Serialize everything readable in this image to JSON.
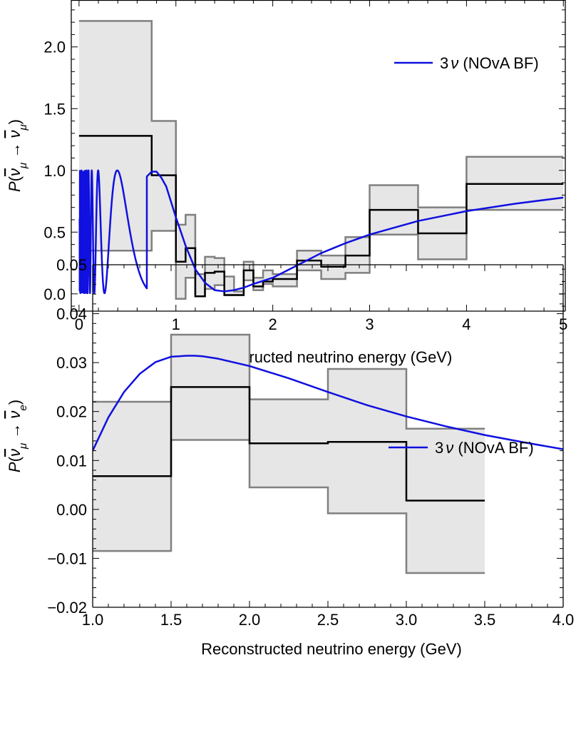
{
  "chart_data": [
    {
      "type": "line",
      "xlabel": "Reconstructed neutrino energy (GeV)",
      "ylabel": "P(ν̄μ → ν̄μ)",
      "ylabel_parts": {
        "prefix": "P",
        "from": "ν",
        "from_sub": "μ",
        "arrow": "→",
        "to": "ν",
        "to_sub": "μ"
      },
      "xlim": [
        -0.08,
        5.02
      ],
      "ylim": [
        -0.14,
        2.38
      ],
      "xticks": [
        0,
        1,
        2,
        3,
        4,
        5
      ],
      "xtick_labels": [
        "0",
        "1",
        "2",
        "3",
        "4",
        "5"
      ],
      "yticks": [
        0.0,
        0.5,
        1.0,
        1.5,
        2.0
      ],
      "ytick_labels": [
        "0.0",
        "0.5",
        "1.0",
        "1.5",
        "2.0"
      ],
      "legend": {
        "position": "top-right",
        "label": "3ν (NOvA BF)",
        "label_parts": {
          "num": "3",
          "nu": "ν",
          "rest": " (NOvA BF)"
        }
      },
      "grid": false,
      "bin_edges": [
        0,
        0.75,
        1.0,
        1.1,
        1.2,
        1.3,
        1.4,
        1.5,
        1.6,
        1.7,
        1.8,
        1.9,
        2.0,
        2.25,
        2.5,
        2.75,
        3.0,
        3.5,
        4.0,
        5.0
      ],
      "series": [
        {
          "role": "histogram-central",
          "color": "#000000",
          "values": [
            1.28,
            0.96,
            0.26,
            0.37,
            -0.02,
            0.17,
            0.18,
            -0.01,
            -0.01,
            0.19,
            0.06,
            0.1,
            0.12,
            0.27,
            0.22,
            0.31,
            0.68,
            0.49,
            0.89
          ]
        },
        {
          "role": "band-upper",
          "color": "#808080",
          "values": [
            2.21,
            1.4,
            0.56,
            0.64,
            0.16,
            0.3,
            0.29,
            0.14,
            0.02,
            0.26,
            0.13,
            0.19,
            0.16,
            0.35,
            0.31,
            0.46,
            0.88,
            0.7,
            1.11
          ]
        },
        {
          "role": "band-lower",
          "color": "#808080",
          "values": [
            0.35,
            0.51,
            -0.04,
            0.13,
            -0.02,
            0.04,
            0.07,
            -0.01,
            -0.01,
            0.11,
            0.03,
            0.08,
            0.06,
            0.19,
            0.12,
            0.17,
            0.48,
            0.28,
            0.68
          ]
        },
        {
          "role": "model-curve",
          "name": "3ν (NOvA BF)",
          "color": "#1010e0",
          "x": [
            0.7,
            0.75,
            0.8,
            0.85,
            0.9,
            1.0,
            1.1,
            1.2,
            1.3,
            1.4,
            1.5,
            1.6,
            1.7,
            1.8,
            2.0,
            2.25,
            2.5,
            2.75,
            3.0,
            3.5,
            4.0,
            4.5,
            5.0
          ],
          "y": [
            0.95,
            0.99,
            0.99,
            0.94,
            0.87,
            0.62,
            0.39,
            0.2,
            0.09,
            0.03,
            0.02,
            0.03,
            0.05,
            0.08,
            0.13,
            0.23,
            0.33,
            0.41,
            0.48,
            0.59,
            0.67,
            0.73,
            0.78
          ],
          "fast_oscillation_region": [
            0.0,
            0.6
          ]
        }
      ]
    },
    {
      "type": "line",
      "xlabel": "Reconstructed neutrino energy (GeV)",
      "ylabel": "P(ν̄μ → ν̄e)",
      "ylabel_parts": {
        "prefix": "P",
        "from": "ν",
        "from_sub": "μ",
        "arrow": "→",
        "to": "ν",
        "to_sub": "e"
      },
      "xlim": [
        1.0,
        4.0
      ],
      "ylim": [
        -0.02,
        0.05
      ],
      "xticks": [
        1.0,
        1.5,
        2.0,
        2.5,
        3.0,
        3.5,
        4.0
      ],
      "xtick_labels": [
        "1.0",
        "1.5",
        "2.0",
        "2.5",
        "3.0",
        "3.5",
        "4.0"
      ],
      "yticks": [
        -0.02,
        -0.01,
        0.0,
        0.01,
        0.02,
        0.03,
        0.04,
        0.05
      ],
      "ytick_labels": [
        "−0.02",
        "−0.01",
        "0.00",
        "0.01",
        "0.02",
        "0.03",
        "0.04",
        "0.05"
      ],
      "legend": {
        "position": "top-right",
        "label": "3ν (NOvA BF)",
        "label_parts": {
          "num": "3",
          "nu": "ν",
          "rest": " (NOvA BF)"
        }
      },
      "grid": false,
      "bin_edges": [
        1.0,
        1.5,
        2.0,
        2.5,
        3.0,
        3.5
      ],
      "series": [
        {
          "role": "histogram-central",
          "color": "#000000",
          "values": [
            0.0068,
            0.025,
            0.0135,
            0.0138,
            0.0018
          ]
        },
        {
          "role": "band-upper",
          "color": "#808080",
          "values": [
            0.022,
            0.0357,
            0.0225,
            0.0287,
            0.0165
          ]
        },
        {
          "role": "band-lower",
          "color": "#808080",
          "values": [
            -0.0085,
            0.0142,
            0.0045,
            -0.0008,
            -0.013
          ]
        },
        {
          "role": "model-curve",
          "name": "3ν (NOvA BF)",
          "color": "#1010e0",
          "x": [
            1.0,
            1.1,
            1.2,
            1.3,
            1.4,
            1.5,
            1.6,
            1.65,
            1.7,
            1.8,
            2.0,
            2.25,
            2.5,
            2.75,
            3.0,
            3.25,
            3.5,
            3.75,
            4.0
          ],
          "y": [
            0.012,
            0.0188,
            0.024,
            0.0277,
            0.0301,
            0.0312,
            0.0314,
            0.0314,
            0.0313,
            0.0308,
            0.0293,
            0.0268,
            0.024,
            0.0213,
            0.019,
            0.017,
            0.0152,
            0.0137,
            0.0123
          ]
        }
      ]
    }
  ]
}
